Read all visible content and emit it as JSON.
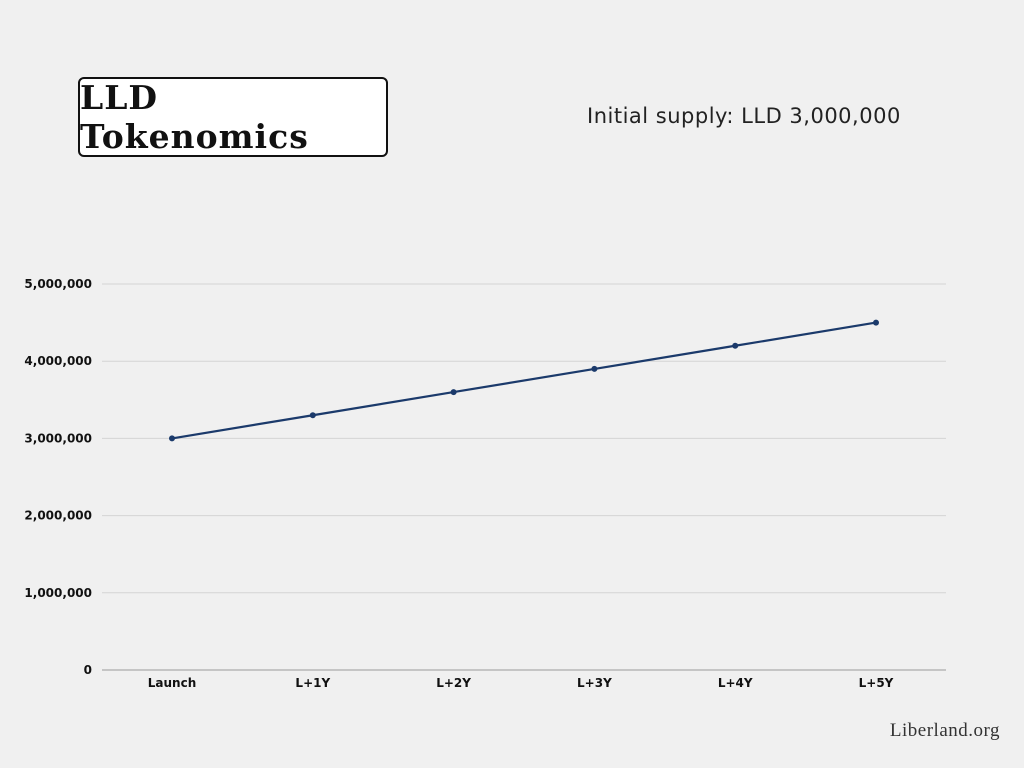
{
  "header": {
    "title": "LLD Tokenomics",
    "subtitle": "Initial supply: LLD 3,000,000"
  },
  "footer": {
    "brand": "Liberland.org"
  },
  "chart_data": {
    "type": "line",
    "categories": [
      "Launch",
      "L+1Y",
      "L+2Y",
      "L+3Y",
      "L+4Y",
      "L+5Y"
    ],
    "series": [
      {
        "values": [
          3000000,
          3300000,
          3600000,
          3900000,
          4200000,
          4500000
        ],
        "color": "#1b3a6b"
      }
    ],
    "y_ticks": [
      "0",
      "1,000,000",
      "2,000,000",
      "3,000,000",
      "4,000,000",
      "5,000,000"
    ],
    "ylim": [
      0,
      5000000
    ],
    "grid": true,
    "legend": "none",
    "xlabel": "",
    "ylabel": ""
  }
}
